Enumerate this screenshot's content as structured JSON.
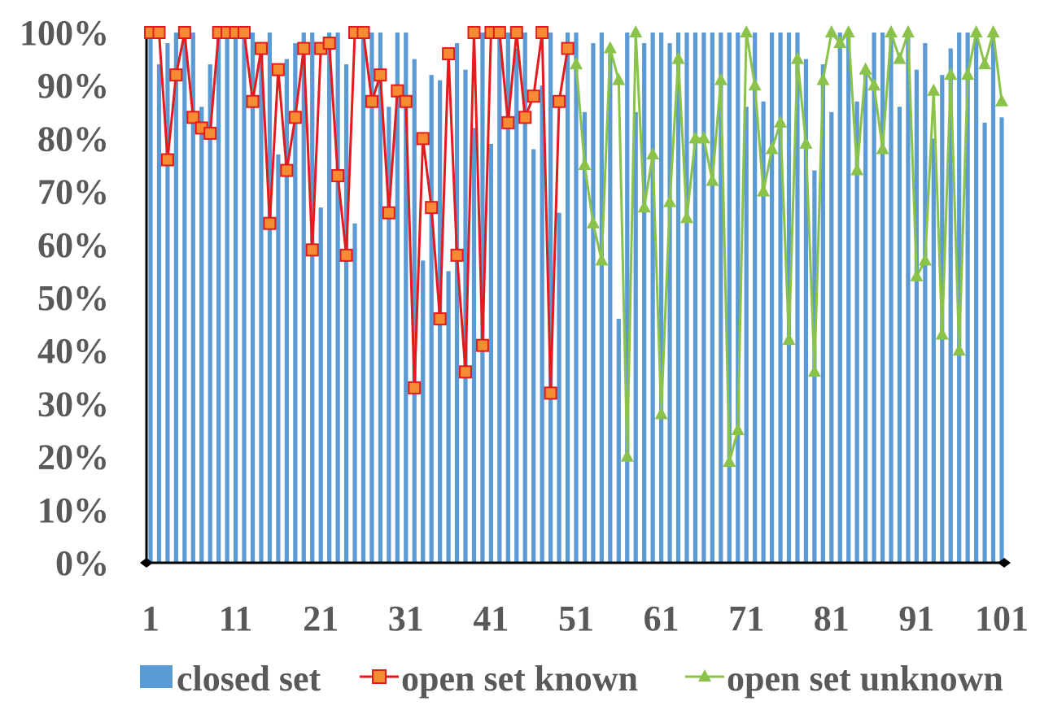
{
  "chart_data": {
    "type": "bar+line",
    "title": "",
    "xlabel": "",
    "ylabel": "",
    "ylim": [
      0,
      100
    ],
    "y_ticks": [
      "0%",
      "10%",
      "20%",
      "30%",
      "40%",
      "50%",
      "60%",
      "70%",
      "80%",
      "90%",
      "100%"
    ],
    "x_ticks": [
      "1",
      "11",
      "21",
      "31",
      "41",
      "51",
      "61",
      "71",
      "81",
      "91",
      "101"
    ],
    "x_range": [
      1,
      101
    ],
    "grid": false,
    "legend_position": "bottom",
    "series": [
      {
        "name": "closed set",
        "kind": "bar",
        "color": "#5B9BD5",
        "x_start": 1,
        "values": [
          100,
          94,
          98,
          100,
          100,
          100,
          86,
          94,
          100,
          100,
          100,
          100,
          100,
          97,
          100,
          77,
          95,
          98,
          100,
          100,
          67,
          100,
          100,
          94,
          64,
          100,
          100,
          100,
          86,
          100,
          100,
          95,
          57,
          92,
          91,
          55,
          98,
          93,
          82,
          100,
          79,
          100,
          100,
          97,
          100,
          78,
          90,
          100,
          66,
          100,
          100,
          85,
          98,
          100,
          96,
          46,
          100,
          85,
          98,
          100,
          100,
          98,
          100,
          100,
          100,
          100,
          100,
          100,
          100,
          100,
          86,
          100,
          87,
          100,
          100,
          100,
          100,
          95,
          74,
          94,
          85,
          100,
          100,
          87,
          93,
          100,
          100,
          100,
          86,
          100,
          93,
          98,
          80,
          92,
          97,
          100,
          100,
          100,
          83,
          100,
          84
        ]
      },
      {
        "name": "open set known",
        "kind": "line",
        "color": "#E41A1C",
        "marker": "square",
        "marker_fill": "#F58B33",
        "x_start": 1,
        "values": [
          100,
          100,
          76,
          92,
          100,
          84,
          82,
          81,
          100,
          100,
          100,
          100,
          87,
          97,
          64,
          93,
          74,
          84,
          97,
          59,
          97,
          98,
          73,
          58,
          100,
          100,
          87,
          92,
          66,
          89,
          87,
          33,
          80,
          67,
          46,
          96,
          58,
          36,
          100,
          41,
          100,
          100,
          83,
          100,
          84,
          88,
          100,
          32,
          87,
          97
        ]
      },
      {
        "name": "open set unknown",
        "kind": "line",
        "color": "#8BC34A",
        "marker": "triangle",
        "marker_fill": "#8BC34A",
        "x_start": 51,
        "values": [
          94,
          75,
          64,
          57,
          97,
          91,
          20,
          100,
          67,
          77,
          28,
          68,
          95,
          65,
          80,
          80,
          72,
          91,
          19,
          25,
          100,
          90,
          70,
          78,
          83,
          42,
          95,
          79,
          36,
          91,
          100,
          98,
          100,
          74,
          93,
          90,
          78,
          100,
          95,
          100,
          54,
          57,
          89,
          43,
          92,
          40,
          92,
          100,
          94,
          100,
          87
        ]
      }
    ]
  }
}
